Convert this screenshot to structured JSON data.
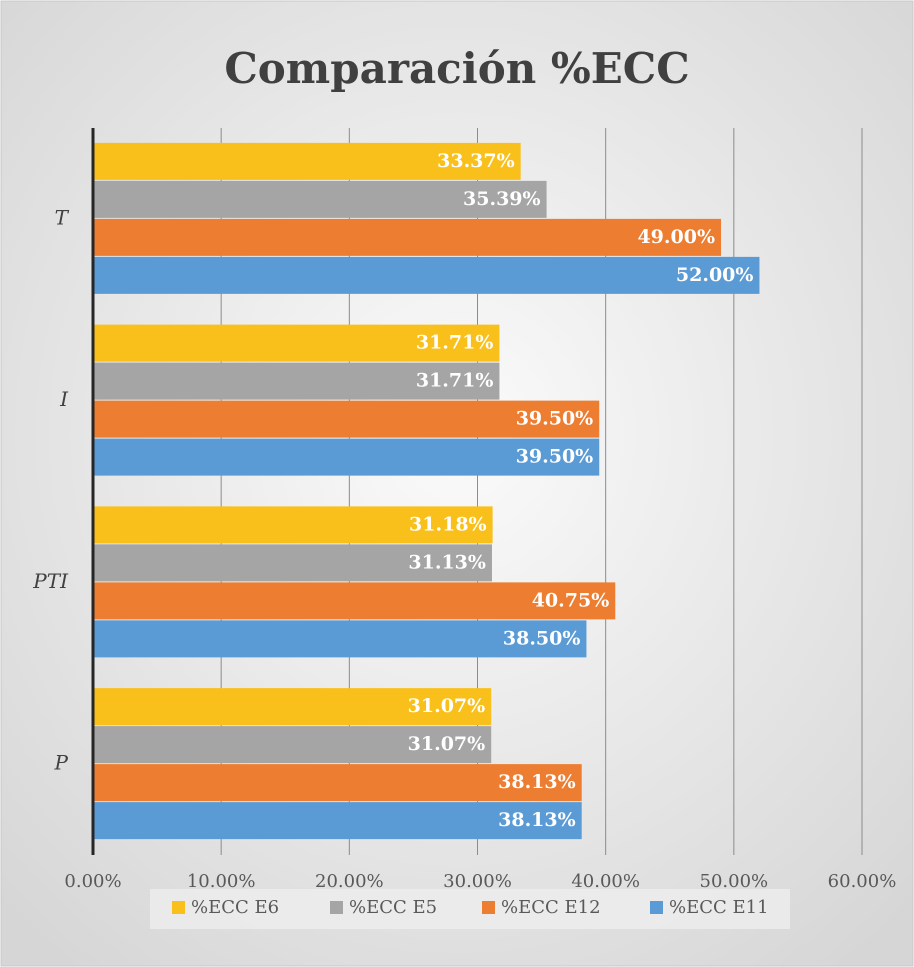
{
  "chart_data": {
    "type": "hbar",
    "title": "Comparación %ECC",
    "categories": [
      "T",
      "I",
      "PTI",
      "P"
    ],
    "series": [
      {
        "name": "%ECC E6",
        "color": "#f9c01b",
        "values": [
          33.37,
          31.71,
          31.18,
          31.07
        ],
        "value_labels": [
          "33.37%",
          "31.71%",
          "31.18%",
          "31.07%"
        ]
      },
      {
        "name": "%ECC E5",
        "color": "#a5a5a5",
        "values": [
          35.39,
          31.71,
          31.13,
          31.07
        ],
        "value_labels": [
          "35.39%",
          "31.71%",
          "31.13%",
          "31.07%"
        ]
      },
      {
        "name": "%ECC E12",
        "color": "#ed7d31",
        "values": [
          49.0,
          39.5,
          40.75,
          38.13
        ],
        "value_labels": [
          "49.00%",
          "39.50%",
          "40.75%",
          "38.13%"
        ]
      },
      {
        "name": "%ECC E11",
        "color": "#5b9bd5",
        "values": [
          52.0,
          39.5,
          38.5,
          38.13
        ],
        "value_labels": [
          "52.00%",
          "39.50%",
          "38.50%",
          "38.13%"
        ]
      }
    ],
    "xlim": [
      0,
      60
    ],
    "xticks": [
      {
        "value": 0,
        "label": "0.00%"
      },
      {
        "value": 10,
        "label": "10.00%"
      },
      {
        "value": 20,
        "label": "20.00%"
      },
      {
        "value": 30,
        "label": "30.00%"
      },
      {
        "value": 40,
        "label": "40.00%"
      },
      {
        "value": 50,
        "label": "50.00%"
      },
      {
        "value": 60,
        "label": "60.00%"
      }
    ],
    "grid": true,
    "legend": "bottom"
  }
}
